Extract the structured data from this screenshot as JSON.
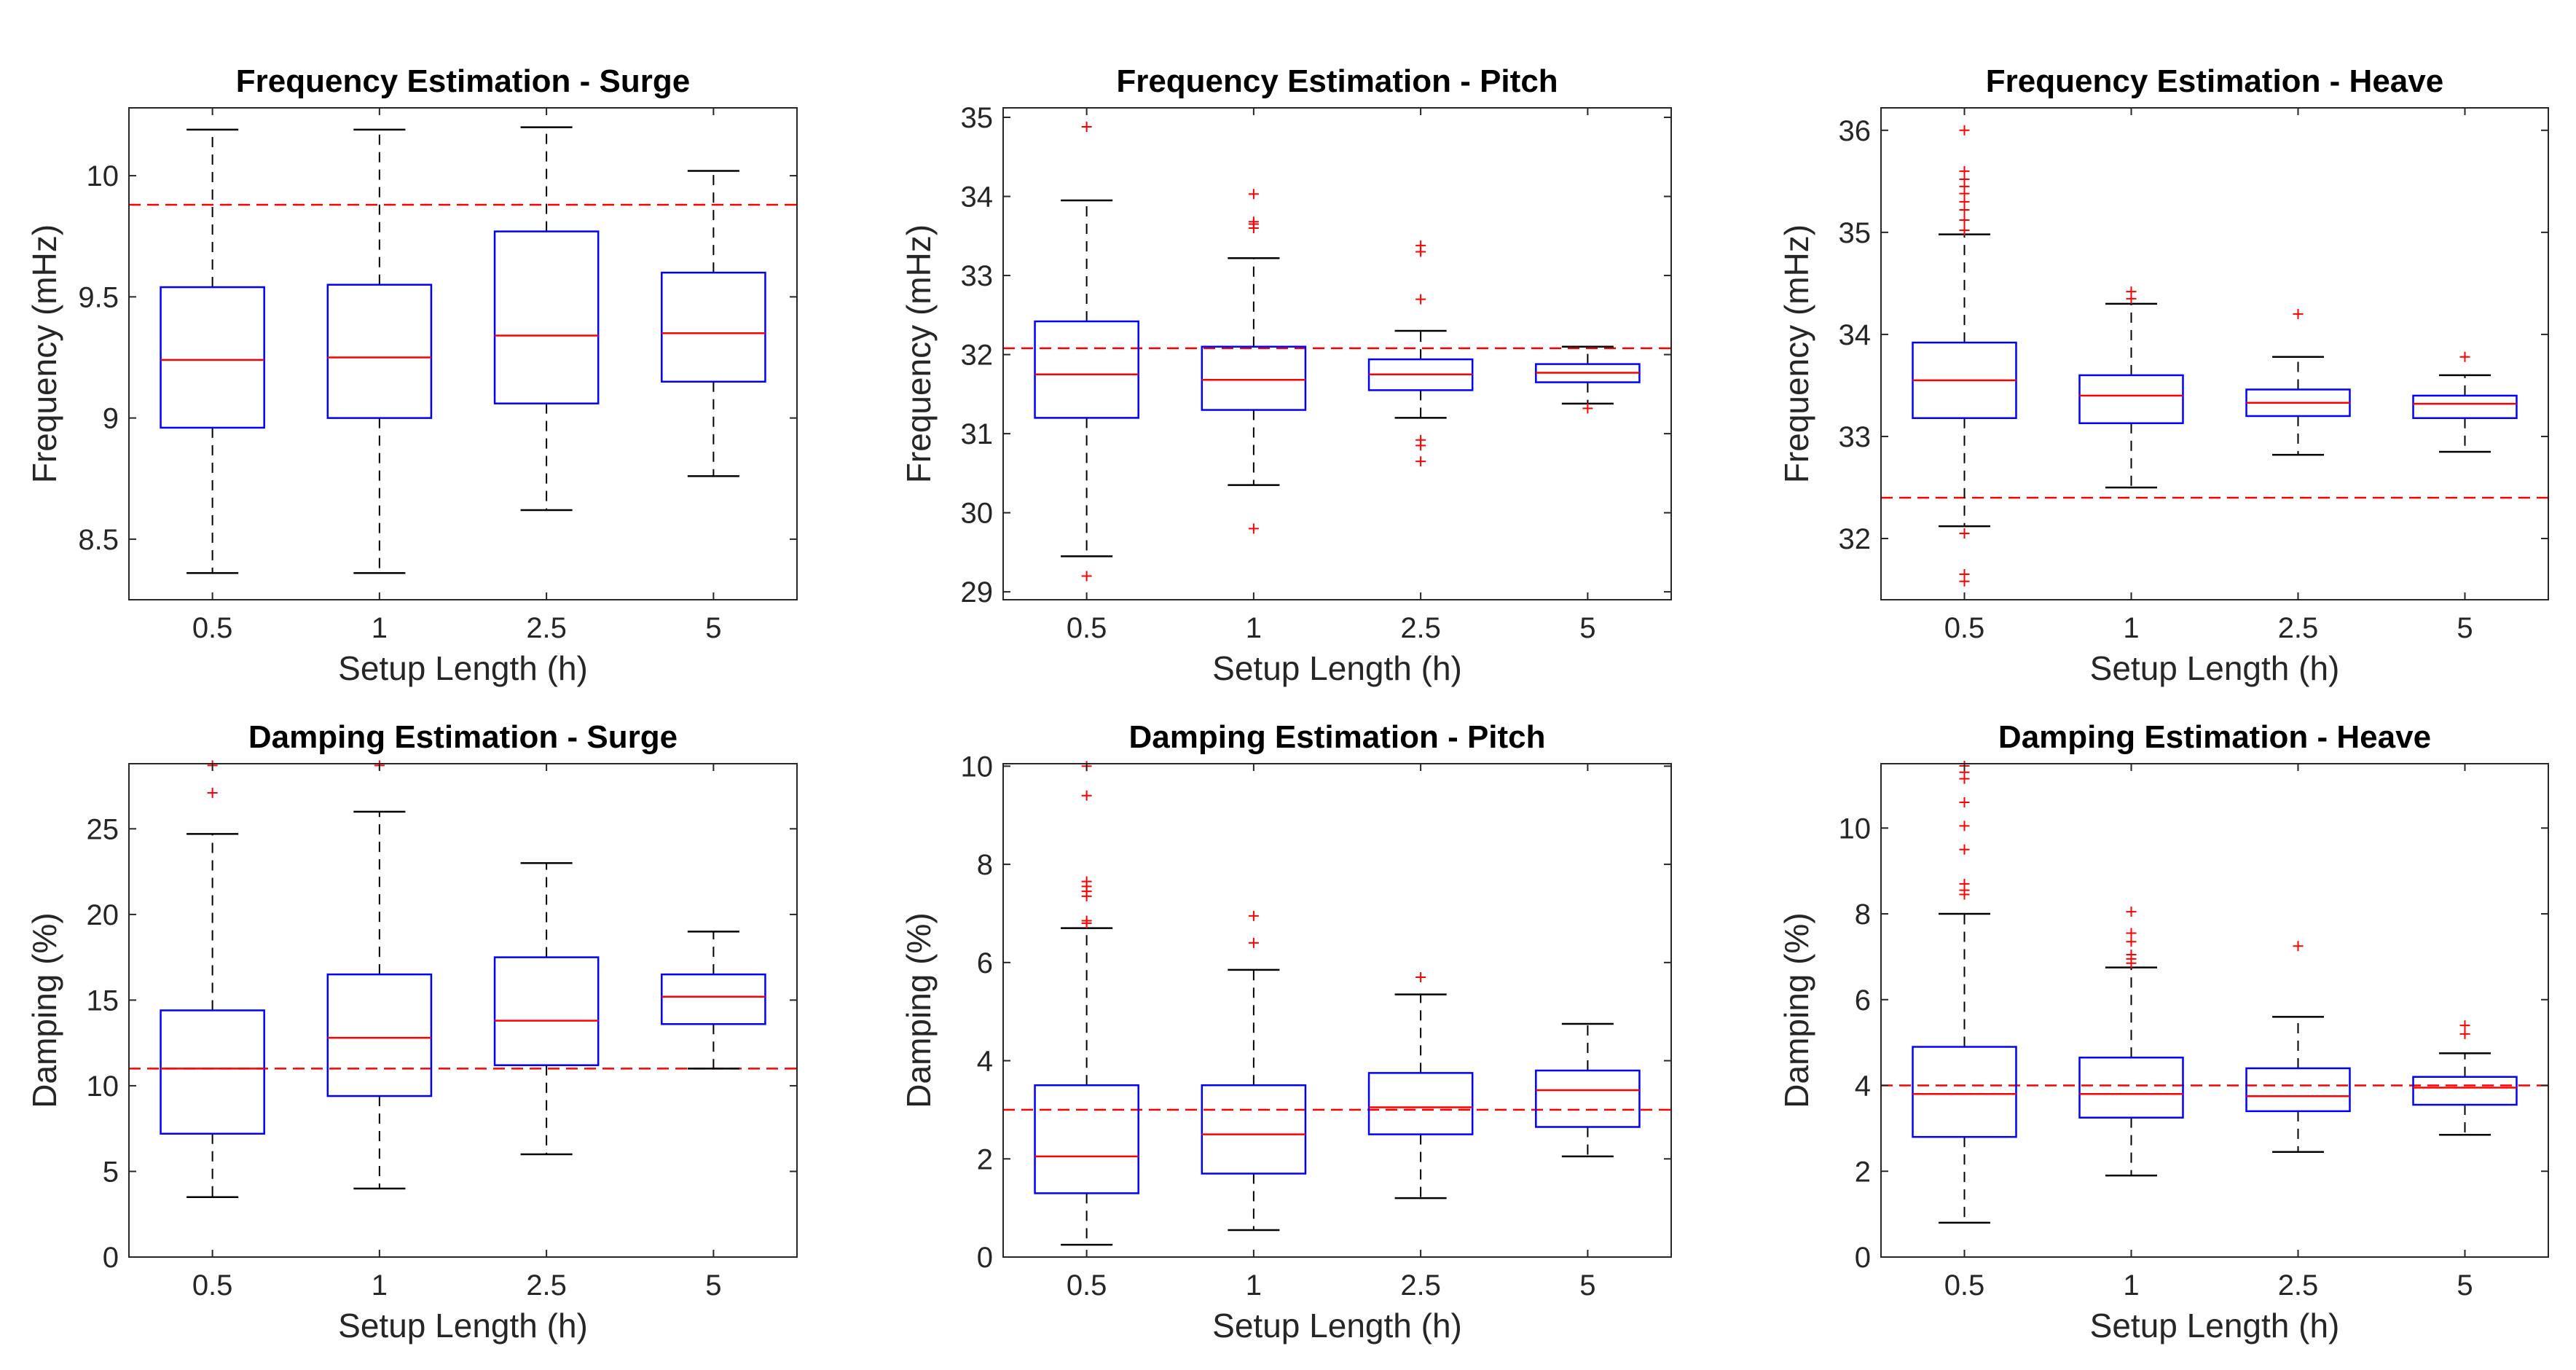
{
  "colors": {
    "box": "#0000ff",
    "median": "#ff0000",
    "whisker": "#000000",
    "outlier": "#ff0000",
    "reference": "#ff0000",
    "axes": "#262626"
  },
  "chart_data": [
    {
      "type": "boxplot",
      "title": "Frequency Estimation - Surge",
      "xlabel": "Setup Length (h)",
      "ylabel": "Frequency  (mHz)",
      "categories": [
        "0.5",
        "1",
        "2.5",
        "5"
      ],
      "ylim": [
        8.25,
        10.28
      ],
      "yticks": [
        8.5,
        9,
        9.5,
        10
      ],
      "ytick_labels": [
        "8.5",
        "9",
        "9.5",
        "10"
      ],
      "reference_line": 9.88,
      "grid": false,
      "boxes": [
        {
          "whisker_low": 8.36,
          "q1": 8.96,
          "median": 9.24,
          "q3": 9.54,
          "whisker_high": 10.19,
          "outliers": []
        },
        {
          "whisker_low": 8.36,
          "q1": 9.0,
          "median": 9.25,
          "q3": 9.55,
          "whisker_high": 10.19,
          "outliers": []
        },
        {
          "whisker_low": 8.62,
          "q1": 9.06,
          "median": 9.34,
          "q3": 9.77,
          "whisker_high": 10.2,
          "outliers": []
        },
        {
          "whisker_low": 8.76,
          "q1": 9.15,
          "median": 9.35,
          "q3": 9.6,
          "whisker_high": 10.02,
          "outliers": []
        }
      ]
    },
    {
      "type": "boxplot",
      "title": "Frequency Estimation - Pitch",
      "xlabel": "Setup Length (h)",
      "ylabel": "Frequency  (mHz)",
      "categories": [
        "0.5",
        "1",
        "2.5",
        "5"
      ],
      "ylim": [
        28.9,
        35.12
      ],
      "yticks": [
        29,
        30,
        31,
        32,
        33,
        34,
        35
      ],
      "ytick_labels": [
        "29",
        "30",
        "31",
        "32",
        "33",
        "34",
        "35"
      ],
      "reference_line": 32.08,
      "grid": false,
      "boxes": [
        {
          "whisker_low": 29.45,
          "q1": 31.2,
          "median": 31.75,
          "q3": 32.42,
          "whisker_high": 33.95,
          "outliers": [
            34.88,
            29.2
          ]
        },
        {
          "whisker_low": 30.35,
          "q1": 31.3,
          "median": 31.68,
          "q3": 32.1,
          "whisker_high": 33.22,
          "outliers": [
            34.03,
            33.68,
            33.65,
            33.6,
            29.8
          ]
        },
        {
          "whisker_low": 31.2,
          "q1": 31.55,
          "median": 31.75,
          "q3": 31.94,
          "whisker_high": 32.3,
          "outliers": [
            33.38,
            33.3,
            32.7,
            30.92,
            30.85,
            30.65
          ]
        },
        {
          "whisker_low": 31.38,
          "q1": 31.65,
          "median": 31.77,
          "q3": 31.88,
          "whisker_high": 32.1,
          "outliers": [
            31.32
          ]
        }
      ]
    },
    {
      "type": "boxplot",
      "title": "Frequency Estimation - Heave",
      "xlabel": "Setup Length (h)",
      "ylabel": "Frequency  (mHz)",
      "categories": [
        "0.5",
        "1",
        "2.5",
        "5"
      ],
      "ylim": [
        31.4,
        36.22
      ],
      "yticks": [
        32,
        33,
        34,
        35,
        36
      ],
      "ytick_labels": [
        "32",
        "33",
        "34",
        "35",
        "36"
      ],
      "reference_line": 32.4,
      "grid": false,
      "boxes": [
        {
          "whisker_low": 32.12,
          "q1": 33.18,
          "median": 33.55,
          "q3": 33.92,
          "whisker_high": 34.98,
          "outliers": [
            36.0,
            35.6,
            35.52,
            35.45,
            35.38,
            35.3,
            35.22,
            35.12,
            35.02,
            32.05,
            31.65,
            31.58
          ]
        },
        {
          "whisker_low": 32.5,
          "q1": 33.13,
          "median": 33.4,
          "q3": 33.6,
          "whisker_high": 34.3,
          "outliers": [
            34.42,
            34.35
          ]
        },
        {
          "whisker_low": 32.82,
          "q1": 33.2,
          "median": 33.33,
          "q3": 33.46,
          "whisker_high": 33.78,
          "outliers": [
            34.2
          ]
        },
        {
          "whisker_low": 32.85,
          "q1": 33.18,
          "median": 33.32,
          "q3": 33.4,
          "whisker_high": 33.6,
          "outliers": [
            33.78
          ]
        }
      ]
    },
    {
      "type": "boxplot",
      "title": "Damping Estimation - Surge",
      "xlabel": "Setup Length (h)",
      "ylabel": "Damping  (%)",
      "categories": [
        "0.5",
        "1",
        "2.5",
        "5"
      ],
      "ylim": [
        0,
        28.8
      ],
      "yticks": [
        0,
        5,
        10,
        15,
        20,
        25
      ],
      "ytick_labels": [
        "0",
        "5",
        "10",
        "15",
        "20",
        "25"
      ],
      "reference_line": 11.0,
      "grid": false,
      "boxes": [
        {
          "whisker_low": 3.5,
          "q1": 7.2,
          "median": 11.0,
          "q3": 14.4,
          "whisker_high": 24.7,
          "outliers": [
            28.7,
            27.1
          ]
        },
        {
          "whisker_low": 4.0,
          "q1": 9.4,
          "median": 12.8,
          "q3": 16.5,
          "whisker_high": 26.0,
          "outliers": [
            28.7
          ]
        },
        {
          "whisker_low": 6.0,
          "q1": 11.2,
          "median": 13.8,
          "q3": 17.5,
          "whisker_high": 23.0,
          "outliers": []
        },
        {
          "whisker_low": 11.0,
          "q1": 13.6,
          "median": 15.2,
          "q3": 16.5,
          "whisker_high": 19.0,
          "outliers": []
        }
      ]
    },
    {
      "type": "boxplot",
      "title": "Damping Estimation - Pitch",
      "xlabel": "Setup Length (h)",
      "ylabel": "Damping  (%)",
      "categories": [
        "0.5",
        "1",
        "2.5",
        "5"
      ],
      "ylim": [
        0,
        10.05
      ],
      "yticks": [
        0,
        2,
        4,
        6,
        8,
        10
      ],
      "ytick_labels": [
        "0",
        "2",
        "4",
        "6",
        "8",
        "10"
      ],
      "reference_line": 3.0,
      "grid": false,
      "boxes": [
        {
          "whisker_low": 0.25,
          "q1": 1.3,
          "median": 2.05,
          "q3": 3.5,
          "whisker_high": 6.7,
          "outliers": [
            10.0,
            9.4,
            7.65,
            7.55,
            7.45,
            7.35,
            6.85,
            6.8
          ]
        },
        {
          "whisker_low": 0.55,
          "q1": 1.7,
          "median": 2.5,
          "q3": 3.5,
          "whisker_high": 5.85,
          "outliers": [
            6.95,
            6.4
          ]
        },
        {
          "whisker_low": 1.2,
          "q1": 2.5,
          "median": 3.05,
          "q3": 3.75,
          "whisker_high": 5.35,
          "outliers": [
            5.7
          ]
        },
        {
          "whisker_low": 2.05,
          "q1": 2.65,
          "median": 3.4,
          "q3": 3.8,
          "whisker_high": 4.75,
          "outliers": []
        }
      ]
    },
    {
      "type": "boxplot",
      "title": "Damping Estimation - Heave",
      "xlabel": "Setup Length (h)",
      "ylabel": "Damping  (%)",
      "categories": [
        "0.5",
        "1",
        "2.5",
        "5"
      ],
      "ylim": [
        0,
        11.5
      ],
      "yticks": [
        0,
        2,
        4,
        6,
        8,
        10
      ],
      "ytick_labels": [
        "0",
        "2",
        "4",
        "6",
        "8",
        "10"
      ],
      "reference_line": 4.0,
      "grid": false,
      "boxes": [
        {
          "whisker_low": 0.8,
          "q1": 2.8,
          "median": 3.8,
          "q3": 4.9,
          "whisker_high": 8.0,
          "outliers": [
            11.45,
            11.3,
            11.15,
            10.6,
            10.05,
            9.5,
            8.7,
            8.55,
            8.45
          ]
        },
        {
          "whisker_low": 1.9,
          "q1": 3.25,
          "median": 3.8,
          "q3": 4.65,
          "whisker_high": 6.75,
          "outliers": [
            8.05,
            7.55,
            7.35,
            7.05,
            6.85,
            6.95
          ]
        },
        {
          "whisker_low": 2.45,
          "q1": 3.4,
          "median": 3.75,
          "q3": 4.4,
          "whisker_high": 5.6,
          "outliers": [
            7.25
          ]
        },
        {
          "whisker_low": 2.85,
          "q1": 3.55,
          "median": 3.95,
          "q3": 4.2,
          "whisker_high": 4.75,
          "outliers": [
            5.4,
            5.2
          ]
        }
      ]
    }
  ]
}
